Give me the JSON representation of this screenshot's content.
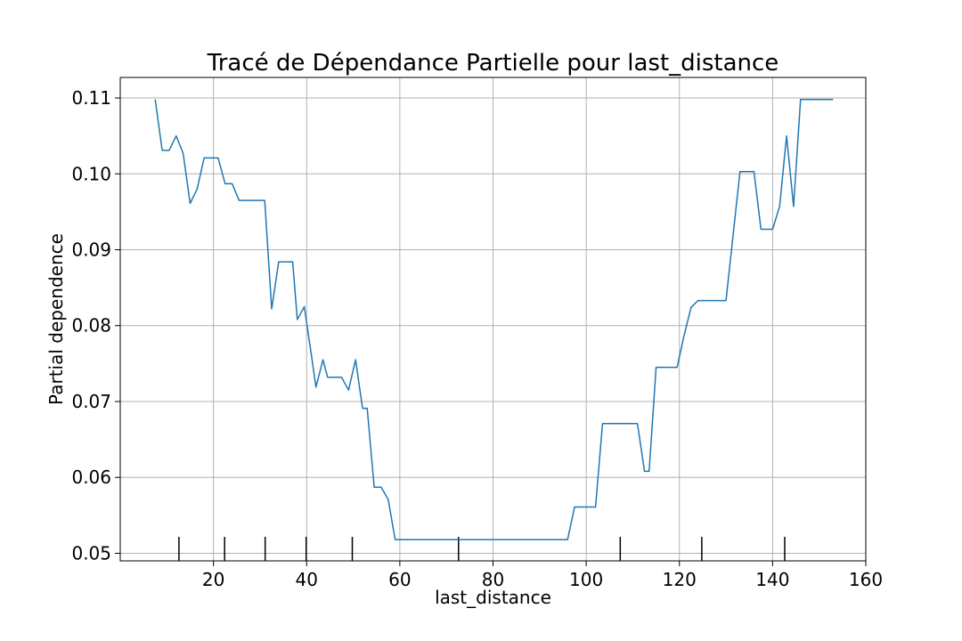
{
  "chart_data": {
    "type": "line",
    "title": "Tracé de Dépendance Partielle pour last_distance",
    "xlabel": "last_distance",
    "ylabel": "Partial dependence",
    "xlim": [
      0,
      160
    ],
    "ylim": [
      0.049,
      0.1127
    ],
    "xticks": [
      20,
      40,
      60,
      80,
      100,
      120,
      140,
      160
    ],
    "yticks": [
      0.05,
      0.06,
      0.07,
      0.08,
      0.09,
      0.1,
      0.11
    ],
    "xtick_labels": [
      "20",
      "40",
      "60",
      "80",
      "100",
      "120",
      "140",
      "160"
    ],
    "ytick_labels": [
      "0.05",
      "0.06",
      "0.07",
      "0.08",
      "0.09",
      "0.10",
      "0.11"
    ],
    "grid": true,
    "line_color": "#1f77b4",
    "rug_color": "#000000",
    "deciles": [
      12.6,
      22.4,
      31.1,
      39.9,
      49.8,
      72.6,
      107.3,
      124.8,
      142.6
    ],
    "series": [
      {
        "x": [
          7.5,
          9.0,
          10.5,
          12.0,
          13.5,
          15.0,
          16.5,
          18.0,
          19.5,
          21.0,
          22.5,
          24.0,
          25.5,
          27.0,
          28.5,
          30.0,
          31.0,
          32.5,
          34.0,
          35.5,
          37.0,
          38.0,
          39.5,
          41.0,
          42.0,
          43.5,
          44.5,
          46.0,
          47.5,
          49.0,
          50.5,
          52.0,
          53.0,
          54.5,
          56.0,
          57.5,
          59.0,
          60.5,
          62.0,
          64.0,
          66.0,
          68.0,
          70.0,
          72.0,
          74.0,
          76.0,
          78.0,
          80.0,
          82.0,
          84.0,
          86.0,
          88.0,
          90.0,
          92.0,
          94.0,
          96.0,
          97.5,
          99.0,
          100.5,
          102.0,
          103.5,
          105.0,
          106.5,
          108.0,
          109.5,
          111.0,
          112.5,
          113.5,
          115.0,
          116.5,
          118.0,
          119.5,
          121.0,
          122.5,
          124.0,
          125.5,
          127.0,
          128.5,
          130.0,
          131.5,
          133.0,
          134.5,
          136.0,
          137.5,
          139.0,
          140.0,
          141.5,
          143.0,
          144.5,
          146.0,
          147.5,
          149.0,
          150.5,
          152.0,
          153.0
        ],
        "values": [
          0.1098,
          0.1031,
          0.1031,
          0.105,
          0.1027,
          0.0961,
          0.098,
          0.1021,
          0.1021,
          0.1021,
          0.0987,
          0.0987,
          0.0965,
          0.0965,
          0.0965,
          0.0965,
          0.0965,
          0.0822,
          0.0884,
          0.0884,
          0.0884,
          0.0808,
          0.0825,
          0.0762,
          0.0719,
          0.0755,
          0.0732,
          0.0732,
          0.0732,
          0.0715,
          0.0755,
          0.0691,
          0.0691,
          0.0587,
          0.0587,
          0.0571,
          0.0518,
          0.0518,
          0.0518,
          0.0518,
          0.0518,
          0.0518,
          0.0518,
          0.0518,
          0.0518,
          0.0518,
          0.0518,
          0.0518,
          0.0518,
          0.0518,
          0.0518,
          0.0518,
          0.0518,
          0.0518,
          0.0518,
          0.0518,
          0.0561,
          0.0561,
          0.0561,
          0.0561,
          0.0671,
          0.0671,
          0.0671,
          0.0671,
          0.0671,
          0.0671,
          0.0608,
          0.0608,
          0.0745,
          0.0745,
          0.0745,
          0.0745,
          0.0787,
          0.0824,
          0.0833,
          0.0833,
          0.0833,
          0.0833,
          0.0833,
          0.0918,
          0.1003,
          0.1003,
          0.1003,
          0.0927,
          0.0927,
          0.0927,
          0.0957,
          0.105,
          0.0957,
          0.1098,
          0.1098,
          0.1098,
          0.1098,
          0.1098,
          0.1098
        ]
      }
    ]
  }
}
